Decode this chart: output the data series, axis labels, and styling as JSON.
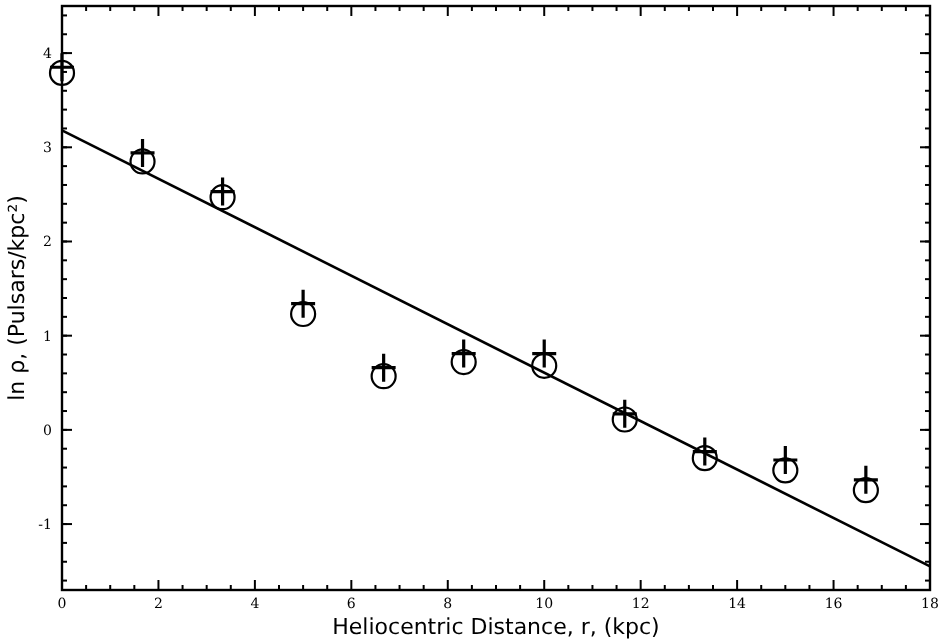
{
  "chart_data": {
    "type": "scatter",
    "xlabel": "Heliocentric Distance, r, (kpc)",
    "ylabel": "ln ρ, (Pulsars/kpc²)",
    "xlim": [
      0,
      18
    ],
    "ylim": [
      -1.7,
      4.5
    ],
    "xticks": [
      0,
      2,
      4,
      6,
      8,
      10,
      12,
      14,
      16,
      18
    ],
    "yticks": [
      -1,
      0,
      1,
      2,
      3,
      4
    ],
    "grid": false,
    "x": [
      0,
      1.67,
      3.33,
      5,
      6.67,
      8.33,
      10,
      11.67,
      13.33,
      15,
      16.67
    ],
    "series": [
      {
        "color": "#000000",
        "marker": "circle",
        "values": [
          3.79,
          2.85,
          2.47,
          1.23,
          0.57,
          0.72,
          0.68,
          0.11,
          -0.3,
          -0.43,
          -0.64
        ]
      },
      {
        "color": "#000000",
        "marker": "cross",
        "values": [
          3.85,
          2.94,
          2.53,
          1.34,
          0.66,
          0.81,
          0.81,
          0.17,
          -0.23,
          -0.32,
          -0.53
        ]
      },
      {
        "type": "line",
        "color": "#000000",
        "marker": "none",
        "line_style": "solid",
        "x": [
          0,
          18
        ],
        "values": [
          3.18,
          -1.45
        ]
      }
    ]
  }
}
